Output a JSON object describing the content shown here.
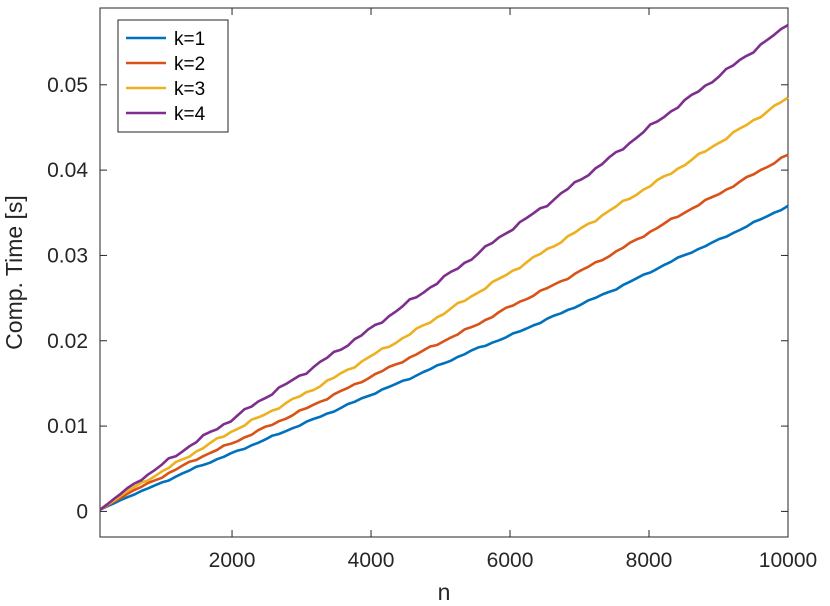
{
  "chart_data": {
    "type": "line",
    "title": "",
    "xlabel": "n",
    "ylabel": "Comp. Time [s]",
    "xlim": [
      100,
      10000
    ],
    "ylim": [
      -0.003,
      0.059
    ],
    "xticks": [
      2000,
      4000,
      6000,
      8000,
      10000
    ],
    "xtick_labels": [
      "2000",
      "4000",
      "6000",
      "8000",
      "10000"
    ],
    "yticks": [
      0,
      0.01,
      0.02,
      0.03,
      0.04,
      0.05
    ],
    "ytick_labels": [
      "0",
      "0.01",
      "0.02",
      "0.03",
      "0.04",
      "0.05"
    ],
    "grid": false,
    "legend_position": "top-left",
    "x": [
      100,
      500,
      1000,
      1500,
      2000,
      2500,
      3000,
      3500,
      4000,
      4500,
      5000,
      5500,
      6000,
      6500,
      7000,
      7500,
      8000,
      8500,
      9000,
      9500,
      10000
    ],
    "series": [
      {
        "name": "k=1",
        "color": "#0072BD",
        "values": [
          0.0002,
          0.0017,
          0.0034,
          0.0052,
          0.0068,
          0.0085,
          0.0102,
          0.0119,
          0.0137,
          0.0154,
          0.0172,
          0.019,
          0.0206,
          0.0224,
          0.0242,
          0.026,
          0.028,
          0.03,
          0.0318,
          0.0338,
          0.0358
        ]
      },
      {
        "name": "k=2",
        "color": "#D95319",
        "values": [
          0.0002,
          0.0021,
          0.0041,
          0.0062,
          0.008,
          0.0099,
          0.0118,
          0.0138,
          0.0158,
          0.0178,
          0.0198,
          0.0218,
          0.024,
          0.026,
          0.0281,
          0.0303,
          0.0327,
          0.035,
          0.0372,
          0.0395,
          0.0418
        ]
      },
      {
        "name": "k=3",
        "color": "#EDB120",
        "values": [
          0.0002,
          0.0024,
          0.0047,
          0.0071,
          0.0094,
          0.0115,
          0.0136,
          0.0158,
          0.0182,
          0.0205,
          0.023,
          0.0255,
          0.028,
          0.0305,
          0.033,
          0.0356,
          0.0381,
          0.0406,
          0.0432,
          0.0458,
          0.0485
        ]
      },
      {
        "name": "k=4",
        "color": "#7E2F8E",
        "values": [
          0.0002,
          0.0027,
          0.0055,
          0.0083,
          0.0108,
          0.0135,
          0.016,
          0.0187,
          0.0214,
          0.0243,
          0.0271,
          0.03,
          0.033,
          0.0358,
          0.0388,
          0.0418,
          0.045,
          0.048,
          0.051,
          0.054,
          0.057
        ]
      }
    ]
  }
}
